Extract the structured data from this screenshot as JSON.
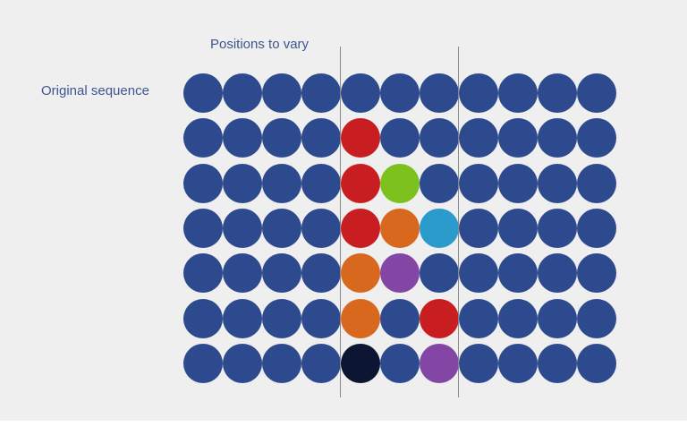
{
  "labels": {
    "positions_to_vary": "Positions to vary",
    "original_sequence": "Original sequence"
  },
  "colors": {
    "base": "#2d4a8f",
    "red": "#c81e22",
    "green": "#7dc11f",
    "orange": "#d9681f",
    "blue": "#2b9bcb",
    "purple": "#8346a4",
    "black": "#0c1632"
  },
  "grid": {
    "columns": 11,
    "varied_columns": [
      4,
      5,
      6
    ],
    "rows": [
      [
        "base",
        "base",
        "base",
        "base",
        "base",
        "base",
        "base",
        "base",
        "base",
        "base",
        "base"
      ],
      [
        "base",
        "base",
        "base",
        "base",
        "red",
        "base",
        "base",
        "base",
        "base",
        "base",
        "base"
      ],
      [
        "base",
        "base",
        "base",
        "base",
        "red",
        "green",
        "base",
        "base",
        "base",
        "base",
        "base"
      ],
      [
        "base",
        "base",
        "base",
        "base",
        "red",
        "orange",
        "blue",
        "base",
        "base",
        "base",
        "base"
      ],
      [
        "base",
        "base",
        "base",
        "base",
        "orange",
        "purple",
        "base",
        "base",
        "base",
        "base",
        "base"
      ],
      [
        "base",
        "base",
        "base",
        "base",
        "orange",
        "base",
        "red",
        "base",
        "base",
        "base",
        "base"
      ],
      [
        "base",
        "base",
        "base",
        "base",
        "black",
        "base",
        "purple",
        "base",
        "base",
        "base",
        "base"
      ]
    ]
  }
}
